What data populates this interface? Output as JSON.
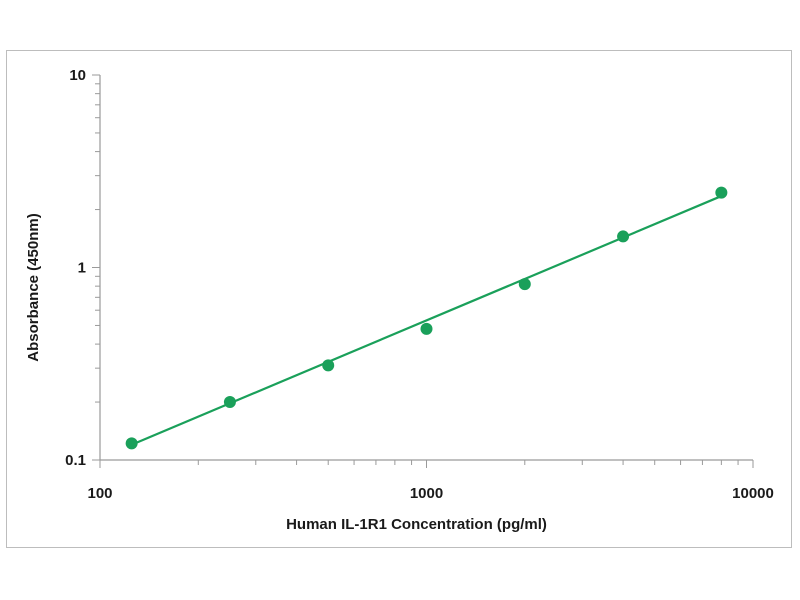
{
  "chart_data": {
    "type": "scatter",
    "title": "",
    "xlabel": "Human IL-1R1 Concentration (pg/ml)",
    "ylabel": "Absorbance (450nm)",
    "x_scale": "log",
    "y_scale": "log",
    "xlim": [
      100,
      10000
    ],
    "ylim": [
      0.1,
      10
    ],
    "x_ticks": [
      "100",
      "1000",
      "10000"
    ],
    "y_ticks": [
      "0.1",
      "1",
      "10"
    ],
    "grid": false,
    "legend": "none",
    "series": [
      {
        "x": [
          125,
          250,
          500,
          1000,
          2000,
          4000,
          8000
        ],
        "y": [
          0.122,
          0.2,
          0.31,
          0.48,
          0.82,
          1.45,
          2.45
        ]
      }
    ],
    "fit_line": {
      "x": [
        125,
        8000
      ],
      "y": [
        0.12,
        2.35
      ]
    },
    "color": "#1aa05a"
  }
}
